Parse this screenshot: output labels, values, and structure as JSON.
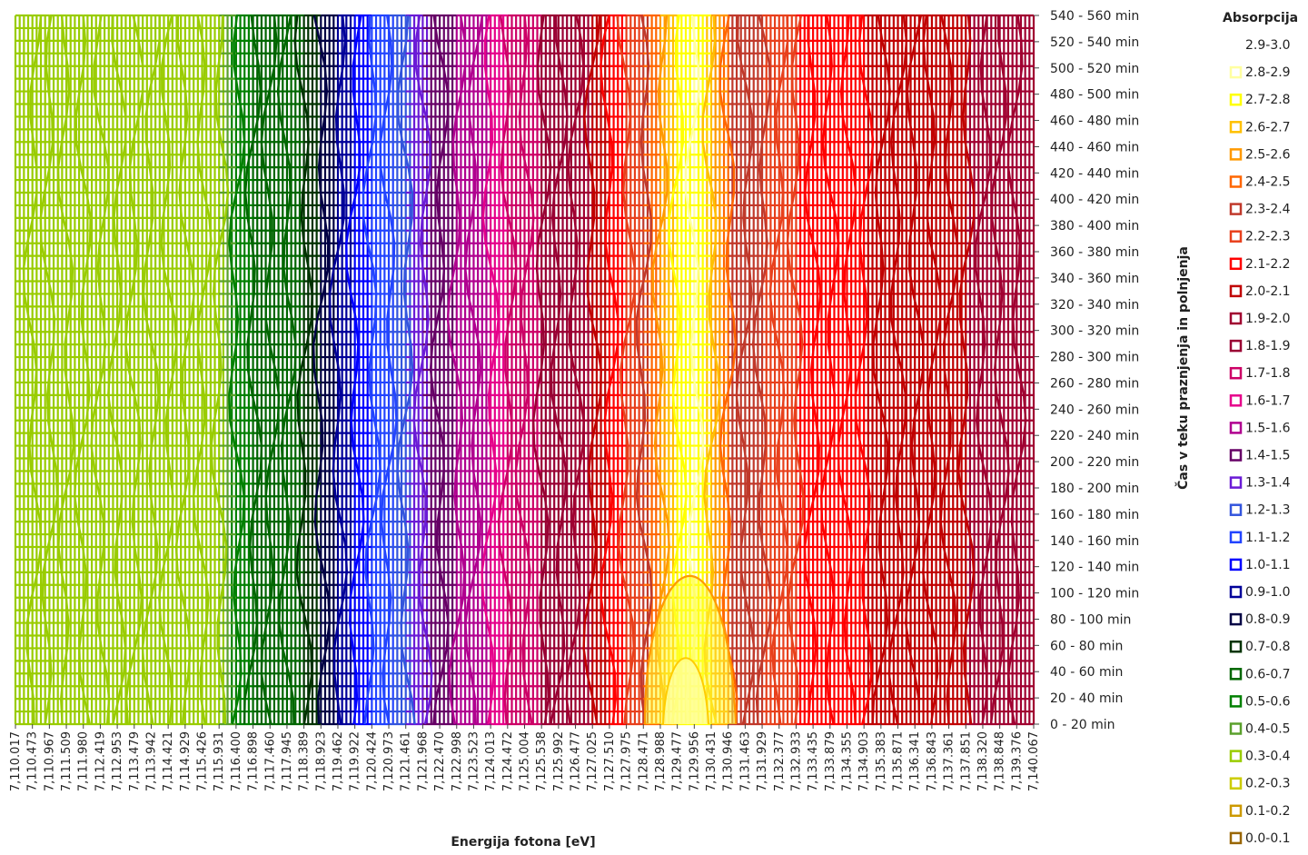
{
  "chart_data": {
    "type": "heatmap",
    "subtype": "contour (wireframe)",
    "xlabel": "Energija fotona [eV]",
    "ylabel": "Čas v teku praznjenja in polnjenja",
    "legend_title": "Absorpcija",
    "legend_placement": "right",
    "x_ticks": [
      "7,110.017",
      "7,110.473",
      "7,110.967",
      "7,111.509",
      "7,111.980",
      "7,112.419",
      "7,112.953",
      "7,113.479",
      "7,113.942",
      "7,114.421",
      "7,114.929",
      "7,115.426",
      "7,115.931",
      "7,116.400",
      "7,116.898",
      "7,117.460",
      "7,117.945",
      "7,118.389",
      "7,118.923",
      "7,119.462",
      "7,119.922",
      "7,120.424",
      "7,120.973",
      "7,121.461",
      "7,121.968",
      "7,122.470",
      "7,122.998",
      "7,123.523",
      "7,124.013",
      "7,124.472",
      "7,125.004",
      "7,125.538",
      "7,125.992",
      "7,126.477",
      "7,127.025",
      "7,127.510",
      "7,127.975",
      "7,128.471",
      "7,128.988",
      "7,129.477",
      "7,129.956",
      "7,130.431",
      "7,130.946",
      "7,131.463",
      "7,131.929",
      "7,132.377",
      "7,132.933",
      "7,133.435",
      "7,133.879",
      "7,134.355",
      "7,134.903",
      "7,135.383",
      "7,135.871",
      "7,136.341",
      "7,136.843",
      "7,137.361",
      "7,137.851",
      "7,138.320",
      "7,138.848",
      "7,139.376",
      "7,140.067"
    ],
    "y_ticks": [
      "0 - 20 min",
      "20 - 40 min",
      "40 - 60 min",
      "60 - 80 min",
      "80 - 100 min",
      "100 - 120 min",
      "120 - 140 min",
      "140 - 160 min",
      "160 - 180 min",
      "180 - 200 min",
      "200 - 220 min",
      "220 - 240 min",
      "240 - 260 min",
      "260 - 280 min",
      "280 - 300 min",
      "300 - 320 min",
      "320 - 340 min",
      "340 - 360 min",
      "360 - 380 min",
      "380 - 400 min",
      "400 - 420 min",
      "420 - 440 min",
      "440 - 460 min",
      "460 - 480 min",
      "480 - 500 min",
      "500 - 520 min",
      "520 - 540 min",
      "540 - 560 min"
    ],
    "legend": [
      {
        "label": "2.9-3.0",
        "color": "#ffffff"
      },
      {
        "label": "2.8-2.9",
        "color": "#ffffa0"
      },
      {
        "label": "2.7-2.8",
        "color": "#ffff00"
      },
      {
        "label": "2.6-2.7",
        "color": "#ffc000"
      },
      {
        "label": "2.5-2.6",
        "color": "#ff9900"
      },
      {
        "label": "2.4-2.5",
        "color": "#ff6600"
      },
      {
        "label": "2.3-2.4",
        "color": "#c0392b"
      },
      {
        "label": "2.2-2.3",
        "color": "#e8401c"
      },
      {
        "label": "2.1-2.2",
        "color": "#ff0000"
      },
      {
        "label": "2.0-2.1",
        "color": "#c00000"
      },
      {
        "label": "1.9-2.0",
        "color": "#a00030"
      },
      {
        "label": "1.8-1.9",
        "color": "#990033"
      },
      {
        "label": "1.7-1.8",
        "color": "#cc0066"
      },
      {
        "label": "1.6-1.7",
        "color": "#e6008a"
      },
      {
        "label": "1.5-1.6",
        "color": "#b0008f"
      },
      {
        "label": "1.4-1.5",
        "color": "#660066"
      },
      {
        "label": "1.3-1.4",
        "color": "#6a1bd6"
      },
      {
        "label": "1.2-1.3",
        "color": "#3355dd"
      },
      {
        "label": "1.1-1.2",
        "color": "#2244ff"
      },
      {
        "label": "1.0-1.1",
        "color": "#0000ff"
      },
      {
        "label": "0.9-1.0",
        "color": "#000099"
      },
      {
        "label": "0.8-0.9",
        "color": "#000044"
      },
      {
        "label": "0.7-0.8",
        "color": "#003300"
      },
      {
        "label": "0.6-0.7",
        "color": "#006600"
      },
      {
        "label": "0.5-0.6",
        "color": "#008000"
      },
      {
        "label": "0.4-0.5",
        "color": "#5aa02c"
      },
      {
        "label": "0.3-0.4",
        "color": "#99cc00"
      },
      {
        "label": "0.2-0.3",
        "color": "#cccc00"
      },
      {
        "label": "0.1-0.2",
        "color": "#cc9900"
      },
      {
        "label": "0.0-0.1",
        "color": "#996600"
      }
    ],
    "column_value_profile": [
      0.35,
      0.35,
      0.35,
      0.35,
      0.35,
      0.35,
      0.35,
      0.35,
      0.35,
      0.35,
      0.35,
      0.35,
      0.35,
      0.55,
      0.6,
      0.65,
      0.65,
      0.7,
      0.8,
      0.9,
      1.0,
      1.1,
      1.15,
      1.25,
      1.35,
      1.45,
      1.5,
      1.55,
      1.6,
      1.7,
      1.75,
      1.8,
      1.85,
      1.9,
      2.0,
      2.1,
      2.2,
      2.3,
      2.5,
      2.7,
      2.8,
      2.6,
      2.4,
      2.3,
      2.3,
      2.2,
      2.2,
      2.1,
      2.1,
      2.1,
      2.1,
      2.0,
      2.0,
      2.0,
      2.0,
      2.0,
      2.0,
      1.9,
      1.9,
      1.9,
      1.9
    ]
  }
}
